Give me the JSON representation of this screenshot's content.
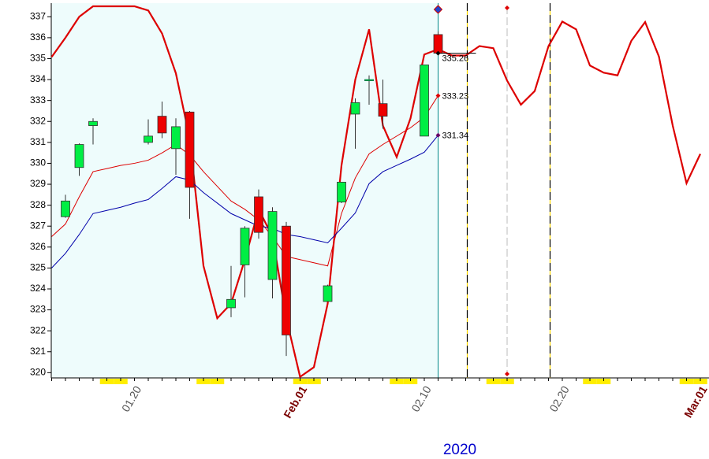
{
  "chart_data": {
    "type": "candlestick",
    "x_label": "2020",
    "categories": [
      null,
      null,
      null,
      null,
      null,
      null,
      "01.20",
      null,
      null,
      null,
      null,
      null,
      null,
      null,
      null,
      null,
      null,
      null,
      "Feb.01",
      null,
      null,
      null,
      null,
      null,
      null,
      null,
      null,
      "02.10",
      null,
      null,
      null,
      null,
      null,
      null,
      null,
      null,
      null,
      "02.20",
      null,
      null,
      null,
      null,
      null,
      null,
      null,
      null,
      null,
      "Mar.01"
    ],
    "ylim": [
      319.75,
      337.5
    ],
    "yticks": [
      320,
      321,
      322,
      323,
      324,
      325,
      326,
      327,
      328,
      329,
      330,
      331,
      332,
      333,
      334,
      335,
      336,
      337
    ],
    "up_color": "#00ee44",
    "down_color": "#ee0000",
    "open": [
      null,
      327.45,
      329.8,
      331.8,
      null,
      null,
      null,
      331.0,
      332.25,
      330.7,
      332.45,
      null,
      null,
      323.1,
      325.15,
      328.4,
      324.45,
      327.0,
      null,
      null,
      323.4,
      328.15,
      332.35,
      334.0,
      332.85,
      null,
      null,
      331.3,
      336.15,
      null,
      null,
      null,
      null,
      null,
      null,
      null,
      null,
      null,
      null,
      null,
      null,
      null,
      null,
      null,
      null,
      null,
      null,
      null
    ],
    "high": [
      null,
      328.5,
      330.95,
      332.15,
      null,
      null,
      null,
      332.1,
      332.95,
      332.15,
      332.5,
      null,
      null,
      325.1,
      327.0,
      328.75,
      327.9,
      327.2,
      null,
      null,
      324.2,
      329.1,
      333.1,
      334.2,
      334.0,
      null,
      null,
      334.7,
      336.3,
      null,
      null,
      null,
      null,
      null,
      null,
      null,
      null,
      null,
      null,
      null,
      null,
      null,
      null,
      null,
      null,
      null,
      null,
      null
    ],
    "low": [
      null,
      327.4,
      329.4,
      330.9,
      null,
      null,
      null,
      330.9,
      331.2,
      329.45,
      327.35,
      null,
      null,
      322.65,
      323.6,
      326.4,
      323.55,
      320.8,
      null,
      null,
      323.4,
      328.1,
      330.7,
      332.8,
      331.65,
      null,
      null,
      331.3,
      335.3,
      null,
      null,
      null,
      null,
      null,
      null,
      null,
      null,
      null,
      null,
      null,
      null,
      null,
      null,
      null,
      null,
      null,
      null,
      null
    ],
    "close": [
      null,
      328.2,
      330.9,
      332.0,
      null,
      null,
      null,
      331.3,
      331.45,
      331.75,
      328.85,
      null,
      null,
      323.5,
      326.9,
      326.7,
      327.7,
      321.8,
      null,
      null,
      324.15,
      329.1,
      332.9,
      334.0,
      332.25,
      null,
      null,
      334.7,
      335.26,
      null,
      null,
      null,
      null,
      null,
      null,
      null,
      null,
      null,
      null,
      null,
      null,
      null,
      null,
      null,
      null,
      null,
      null,
      null
    ],
    "series": [
      {
        "color": "#dd0000",
        "width": 2.2,
        "values": [
          335.08,
          336.0,
          337.0,
          337.5,
          337.5,
          337.5,
          337.5,
          337.3,
          336.2,
          334.3,
          331.2,
          325.1,
          322.6,
          323.3,
          325.4,
          327.8,
          326.5,
          322.6,
          319.8,
          320.26,
          323.3,
          329.9,
          334.0,
          336.4,
          331.8,
          330.3,
          332.15,
          335.2,
          335.45,
          335.15,
          335.15,
          335.6,
          335.5,
          333.95,
          332.8,
          333.45,
          335.6,
          336.77,
          336.4,
          334.67,
          334.33,
          334.2,
          335.85,
          336.75,
          335.1,
          331.8,
          329.05,
          330.45
        ]
      },
      {
        "color": "#dd0000",
        "width": 1,
        "values": [
          326.5,
          327.1,
          328.4,
          329.6,
          329.75,
          329.9,
          330.0,
          330.15,
          330.5,
          330.9,
          330.4,
          329.6,
          328.9,
          328.2,
          327.8,
          327.3,
          326.5,
          325.55,
          325.4,
          325.25,
          325.1,
          327.6,
          329.3,
          330.45,
          330.9,
          331.3,
          331.7,
          332.2,
          333.23,
          null,
          null,
          null,
          null,
          null,
          null,
          null,
          null,
          null,
          null,
          null,
          null,
          null,
          null,
          null,
          null,
          null,
          null,
          null
        ]
      },
      {
        "color": "#0000aa",
        "width": 1,
        "values": [
          325.0,
          325.7,
          326.6,
          327.6,
          327.75,
          327.9,
          328.1,
          328.27,
          328.8,
          329.36,
          329.2,
          328.6,
          328.1,
          327.6,
          327.3,
          327.0,
          326.9,
          326.6,
          326.5,
          326.35,
          326.2,
          326.9,
          327.63,
          329.03,
          329.6,
          329.9,
          330.2,
          330.53,
          331.34,
          null,
          null,
          null,
          null,
          null,
          null,
          null,
          null,
          null,
          null,
          null,
          null,
          null,
          null,
          null,
          null,
          null,
          null,
          null
        ]
      }
    ],
    "price_labels": [
      335.26,
      333.23,
      331.34
    ]
  }
}
